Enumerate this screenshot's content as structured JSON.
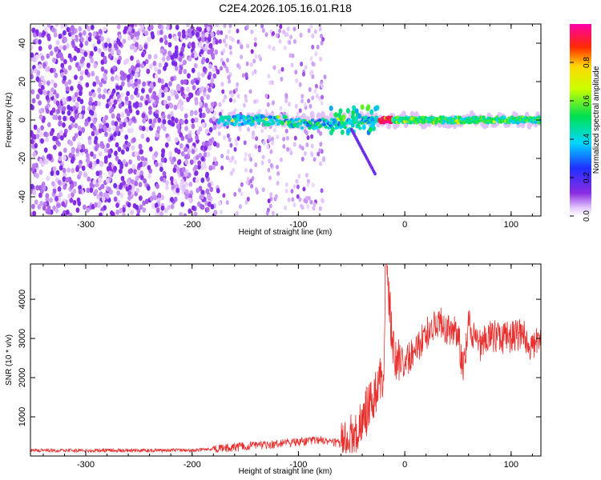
{
  "title": "C2E4.2026.105.16.01.R18",
  "chart_data": [
    {
      "type": "heatmap",
      "name": "spectrogram",
      "xlabel": "Height of straight line (km)",
      "ylabel": "Frequency (Hz)",
      "xlim": [
        -352,
        128
      ],
      "ylim": [
        -50,
        50
      ],
      "xticks": [
        -300,
        -200,
        -100,
        0,
        100
      ],
      "yticks": [
        -40,
        -20,
        0,
        20,
        40
      ],
      "colorbar": {
        "label": "Normalized spectral amplitude",
        "range": [
          0,
          1
        ],
        "ticks": [
          "0.0",
          "0.2",
          "0.4",
          "0.6",
          "0.8"
        ],
        "tick_values": [
          0,
          0.2,
          0.4,
          0.6,
          0.8
        ],
        "colormap": "rainbow (white-violet-blue-cyan-green-yellow-red-magenta)"
      },
      "features": {
        "noise_region_x": [
          -352,
          -175
        ],
        "sparse_region_x": [
          -175,
          -75
        ],
        "signal_start_x": -175,
        "signal_center_freq_hz": 0,
        "signal_peak_x": -18,
        "diagonal_streak": {
          "x": [
            -50,
            -28
          ],
          "freq_hz": [
            -5,
            -28
          ]
        }
      }
    },
    {
      "type": "line",
      "name": "snr",
      "xlabel": "Height of straight line (km)",
      "ylabel": "SNR (10 * v/v)",
      "xlim": [
        -352,
        128
      ],
      "ylim": [
        0,
        4900
      ],
      "xticks": [
        -300,
        -200,
        -100,
        0,
        100
      ],
      "yticks": [
        1000,
        2000,
        3000,
        4000
      ],
      "series": [
        {
          "name": "SNR",
          "color": "#e8312f",
          "x": [
            -352,
            -300,
            -250,
            -200,
            -175,
            -150,
            -125,
            -100,
            -80,
            -60,
            -50,
            -40,
            -30,
            -20,
            -18,
            -10,
            0,
            10,
            20,
            30,
            40,
            50,
            55,
            60,
            70,
            80,
            90,
            100,
            110,
            120,
            128
          ],
          "y": [
            140,
            140,
            140,
            150,
            190,
            240,
            300,
            360,
            420,
            320,
            500,
            900,
            1500,
            2100,
            4900,
            2500,
            2400,
            2700,
            3100,
            3450,
            3250,
            3200,
            2100,
            3400,
            2800,
            3100,
            3000,
            3050,
            3100,
            2800,
            2950
          ]
        }
      ]
    }
  ]
}
